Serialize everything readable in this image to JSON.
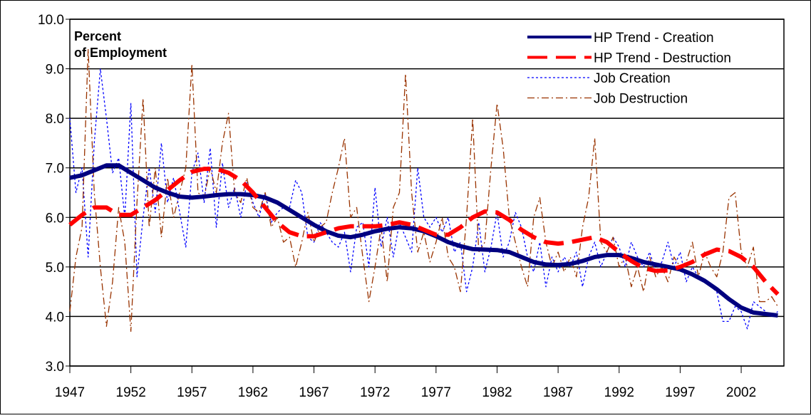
{
  "chart_data": {
    "type": "line",
    "ylabel": [
      "Percent",
      "of Employment"
    ],
    "xlim": [
      1947,
      2005.5
    ],
    "xticks": [
      1947,
      1952,
      1957,
      1962,
      1967,
      1972,
      1977,
      1982,
      1987,
      1992,
      1997,
      2002
    ],
    "ylim": [
      3,
      10
    ],
    "yticks": [
      {
        "value": 3,
        "label": "3.0"
      },
      {
        "value": 4,
        "label": "4.0"
      },
      {
        "value": 5,
        "label": "5.0"
      },
      {
        "value": 6,
        "label": "6.0"
      },
      {
        "value": 7,
        "label": "7.0"
      },
      {
        "value": 8,
        "label": "8.0"
      },
      {
        "value": 9,
        "label": "9.0"
      },
      {
        "value": 10,
        "label": "10.0"
      }
    ],
    "grid": true,
    "legend": "upper right",
    "series": [
      {
        "name": "HP Trend - Creation",
        "color": "#00007f",
        "style": "solid",
        "width": 6,
        "x": [
          1947,
          1948,
          1949,
          1950,
          1951,
          1952,
          1953,
          1954,
          1955,
          1956,
          1957,
          1958,
          1959,
          1960,
          1961,
          1962,
          1963,
          1964,
          1965,
          1966,
          1967,
          1968,
          1969,
          1970,
          1971,
          1972,
          1973,
          1974,
          1975,
          1976,
          1977,
          1978,
          1979,
          1980,
          1981,
          1982,
          1983,
          1984,
          1985,
          1986,
          1987,
          1988,
          1989,
          1990,
          1991,
          1992,
          1993,
          1994,
          1995,
          1996,
          1997,
          1998,
          1999,
          2000,
          2001,
          2002,
          2003,
          2004,
          2005
        ],
        "values": [
          6.8,
          6.85,
          6.95,
          7.05,
          7.05,
          6.9,
          6.75,
          6.6,
          6.5,
          6.42,
          6.4,
          6.42,
          6.45,
          6.47,
          6.47,
          6.45,
          6.4,
          6.3,
          6.15,
          6.0,
          5.85,
          5.72,
          5.63,
          5.6,
          5.65,
          5.72,
          5.77,
          5.8,
          5.78,
          5.72,
          5.62,
          5.5,
          5.42,
          5.36,
          5.35,
          5.34,
          5.3,
          5.2,
          5.1,
          5.05,
          5.04,
          5.06,
          5.12,
          5.2,
          5.24,
          5.24,
          5.18,
          5.1,
          5.05,
          5.0,
          4.95,
          4.85,
          4.72,
          4.55,
          4.35,
          4.18,
          4.08,
          4.05,
          4.02
        ]
      },
      {
        "name": "HP Trend - Destruction",
        "color": "#ff0000",
        "style": "dash",
        "width": 6,
        "x": [
          1947,
          1948,
          1949,
          1950,
          1951,
          1952,
          1953,
          1954,
          1955,
          1956,
          1957,
          1958,
          1959,
          1960,
          1961,
          1962,
          1963,
          1964,
          1965,
          1966,
          1967,
          1968,
          1969,
          1970,
          1971,
          1972,
          1973,
          1974,
          1975,
          1976,
          1977,
          1978,
          1979,
          1980,
          1981,
          1982,
          1983,
          1984,
          1985,
          1986,
          1987,
          1988,
          1989,
          1990,
          1991,
          1992,
          1993,
          1994,
          1995,
          1996,
          1997,
          1998,
          1999,
          2000,
          2001,
          2002,
          2003,
          2004,
          2005
        ],
        "values": [
          5.85,
          6.05,
          6.2,
          6.2,
          6.05,
          6.05,
          6.2,
          6.35,
          6.55,
          6.75,
          6.92,
          6.98,
          6.98,
          6.9,
          6.75,
          6.5,
          6.2,
          5.9,
          5.7,
          5.62,
          5.62,
          5.7,
          5.78,
          5.82,
          5.82,
          5.82,
          5.85,
          5.9,
          5.85,
          5.75,
          5.65,
          5.65,
          5.8,
          6.0,
          6.12,
          6.1,
          5.95,
          5.75,
          5.6,
          5.5,
          5.47,
          5.5,
          5.55,
          5.6,
          5.5,
          5.3,
          5.12,
          4.98,
          4.92,
          4.93,
          5.0,
          5.1,
          5.25,
          5.35,
          5.32,
          5.2,
          5.0,
          4.7,
          4.45
        ]
      },
      {
        "name": "Job Creation",
        "color": "#0000ff",
        "style": "dot",
        "width": 1.3,
        "x": [
          1947,
          1947.5,
          1948,
          1948.5,
          1949,
          1949.5,
          1950,
          1950.5,
          1951,
          1951.5,
          1952,
          1952.5,
          1953,
          1953.5,
          1954,
          1954.5,
          1955,
          1955.5,
          1956,
          1956.5,
          1957,
          1957.5,
          1958,
          1958.5,
          1959,
          1959.5,
          1960,
          1960.5,
          1961,
          1961.5,
          1962,
          1962.5,
          1963,
          1963.5,
          1964,
          1964.5,
          1965,
          1965.5,
          1966,
          1966.5,
          1967,
          1967.5,
          1968,
          1968.5,
          1969,
          1969.5,
          1970,
          1970.5,
          1971,
          1971.5,
          1972,
          1972.5,
          1973,
          1973.5,
          1974,
          1974.5,
          1975,
          1975.5,
          1976,
          1976.5,
          1977,
          1977.5,
          1978,
          1978.5,
          1979,
          1979.5,
          1980,
          1980.5,
          1981,
          1981.5,
          1982,
          1982.5,
          1983,
          1983.5,
          1984,
          1984.5,
          1985,
          1985.5,
          1986,
          1986.5,
          1987,
          1987.5,
          1988,
          1988.5,
          1989,
          1989.5,
          1990,
          1990.5,
          1991,
          1991.5,
          1992,
          1992.5,
          1993,
          1993.5,
          1994,
          1994.5,
          1995,
          1995.5,
          1996,
          1996.5,
          1997,
          1997.5,
          1998,
          1998.5,
          1999,
          1999.5,
          2000,
          2000.5,
          2001,
          2001.5,
          2002,
          2002.5,
          2003,
          2003.5,
          2004,
          2004.5,
          2005
        ],
        "values": [
          8.0,
          6.5,
          7.0,
          5.2,
          7.5,
          9.0,
          8.0,
          6.9,
          7.2,
          6.0,
          8.3,
          4.8,
          6.0,
          7.0,
          6.1,
          7.5,
          6.3,
          6.8,
          6.1,
          5.4,
          6.9,
          7.3,
          6.3,
          7.4,
          5.8,
          7.1,
          6.2,
          6.6,
          6.0,
          6.7,
          6.3,
          6.0,
          6.5,
          5.9,
          6.1,
          6.2,
          6.2,
          6.75,
          6.5,
          5.6,
          5.5,
          5.9,
          5.7,
          5.5,
          5.4,
          5.7,
          4.9,
          5.8,
          5.9,
          5.0,
          6.6,
          5.4,
          6.0,
          5.2,
          5.9,
          5.6,
          5.3,
          7.0,
          6.0,
          5.8,
          6.0,
          5.7,
          6.0,
          5.3,
          5.5,
          4.5,
          5.0,
          5.9,
          4.9,
          5.4,
          6.1,
          5.2,
          5.5,
          6.1,
          5.8,
          5.2,
          4.9,
          5.5,
          4.6,
          5.2,
          4.9,
          5.2,
          5.0,
          5.3,
          4.6,
          5.2,
          5.5,
          5.0,
          5.3,
          5.6,
          5.4,
          5.0,
          5.5,
          5.2,
          5.0,
          5.3,
          4.9,
          5.1,
          5.5,
          5.0,
          5.3,
          4.7,
          5.0,
          4.8,
          4.7,
          4.6,
          4.5,
          3.9,
          3.9,
          4.2,
          4.1,
          3.75,
          4.3,
          4.2,
          4.1,
          4.0,
          4.1
        ]
      },
      {
        "name": "Job Destruction",
        "color": "#993300",
        "style": "dashdot",
        "width": 1.3,
        "x": [
          1947,
          1947.5,
          1948,
          1948.5,
          1949,
          1949.5,
          1950,
          1950.5,
          1951,
          1951.5,
          1952,
          1952.5,
          1953,
          1953.5,
          1954,
          1954.5,
          1955,
          1955.5,
          1956,
          1956.5,
          1957,
          1957.5,
          1958,
          1958.5,
          1959,
          1959.5,
          1960,
          1960.5,
          1961,
          1961.5,
          1962,
          1962.5,
          1963,
          1963.5,
          1964,
          1964.5,
          1965,
          1965.5,
          1966,
          1966.5,
          1967,
          1967.5,
          1968,
          1968.5,
          1969,
          1969.5,
          1970,
          1970.5,
          1971,
          1971.5,
          1972,
          1972.5,
          1973,
          1973.5,
          1974,
          1974.5,
          1975,
          1975.5,
          1976,
          1976.5,
          1977,
          1977.5,
          1978,
          1978.5,
          1979,
          1979.5,
          1980,
          1980.5,
          1981,
          1981.5,
          1982,
          1982.5,
          1983,
          1983.5,
          1984,
          1984.5,
          1985,
          1985.5,
          1986,
          1986.5,
          1987,
          1987.5,
          1988,
          1988.5,
          1989,
          1989.5,
          1990,
          1990.5,
          1991,
          1991.5,
          1992,
          1992.5,
          1993,
          1993.5,
          1994,
          1994.5,
          1995,
          1995.5,
          1996,
          1996.5,
          1997,
          1997.5,
          1998,
          1998.5,
          1999,
          1999.5,
          2000,
          2000.5,
          2001,
          2001.5,
          2002,
          2002.5,
          2003,
          2003.5,
          2004,
          2004.5,
          2005
        ],
        "values": [
          4.1,
          5.2,
          5.8,
          9.4,
          6.5,
          5.0,
          3.8,
          4.7,
          6.2,
          5.5,
          3.7,
          6.3,
          8.4,
          5.8,
          7.0,
          5.6,
          6.8,
          6.0,
          6.5,
          7.0,
          9.1,
          6.5,
          6.4,
          7.0,
          6.5,
          7.5,
          8.1,
          6.5,
          6.3,
          6.8,
          6.2,
          6.1,
          6.5,
          5.8,
          6.0,
          5.5,
          5.6,
          5.0,
          5.5,
          6.1,
          5.5,
          5.8,
          5.9,
          6.5,
          7.0,
          7.6,
          6.0,
          6.2,
          5.2,
          4.3,
          5.0,
          5.8,
          4.7,
          6.2,
          6.5,
          8.9,
          6.5,
          5.3,
          5.7,
          5.1,
          5.5,
          6.0,
          5.2,
          5.0,
          4.5,
          6.0,
          8.0,
          5.3,
          5.5,
          7.0,
          8.3,
          7.4,
          6.0,
          5.5,
          5.0,
          4.6,
          6.0,
          6.4,
          5.5,
          5.0,
          5.3,
          4.9,
          5.2,
          4.8,
          5.8,
          6.4,
          7.6,
          5.5,
          5.3,
          5.6,
          5.0,
          5.2,
          4.6,
          5.0,
          4.5,
          5.2,
          4.8,
          5.0,
          4.7,
          5.2,
          5.0,
          5.1,
          5.5,
          4.8,
          5.3,
          5.0,
          4.8,
          5.3,
          6.4,
          6.5,
          5.3,
          5.0,
          5.4,
          4.3,
          4.3,
          4.4,
          4.2
        ]
      }
    ]
  }
}
